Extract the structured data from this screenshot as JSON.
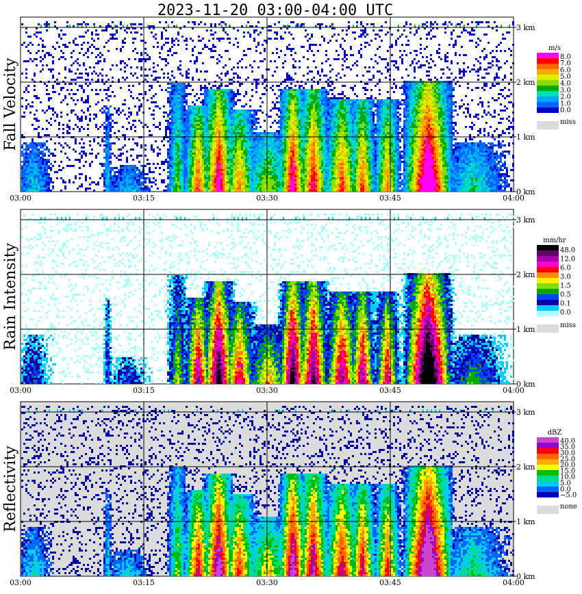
{
  "title": "2023-11-20   03:00-04:00 UTC",
  "time_ticks": [
    "03:00",
    "03:15",
    "03:30",
    "03:45",
    "04:00"
  ],
  "height_ticks": [
    "0 km",
    "1 km",
    "2 km",
    "3 km"
  ],
  "colors": {
    "missing": "#dcdcdc",
    "grid": "#000000",
    "background": "#ffffff"
  },
  "chart_data": [
    {
      "type": "heatmap",
      "id": "fall-velocity",
      "ylabel": "Fall Velocity",
      "x_range": [
        "03:00",
        "04:00"
      ],
      "y_range_km": [
        0,
        3.2
      ],
      "background": "#ffffff",
      "colorbar": {
        "unit": "m/s",
        "labels": [
          "8.0",
          "7.0",
          "6.0",
          "5.0",
          "4.0",
          "3.0",
          "2.0",
          "1.0",
          "0.0"
        ],
        "colors": [
          "#ff00ff",
          "#ff0000",
          "#ff6600",
          "#ffaa00",
          "#ddee00",
          "#88dd00",
          "#00aa00",
          "#00ddbb",
          "#00aaff",
          "#0066ff",
          "#0000cc"
        ],
        "missing_label": "miss"
      }
    },
    {
      "type": "heatmap",
      "id": "rain-intensity",
      "ylabel": "Rain Intensity",
      "x_range": [
        "03:00",
        "04:00"
      ],
      "y_range_km": [
        0,
        3.2
      ],
      "background": "#ffffff",
      "colorbar": {
        "unit": "mm/hr",
        "labels": [
          "48.0",
          "12.0",
          "6.0",
          "3.0",
          "1.5",
          "0.5",
          "0.1",
          "0.0"
        ],
        "colors": [
          "#000000",
          "#660066",
          "#aa00aa",
          "#ff00cc",
          "#ff0000",
          "#ff8800",
          "#ffee00",
          "#88dd00",
          "#00aa00",
          "#0044ff",
          "#0000aa",
          "#00ccff",
          "#aaffff"
        ],
        "missing_label": "miss"
      }
    },
    {
      "type": "heatmap",
      "id": "reflectivity",
      "ylabel": "Reflectivity",
      "x_range": [
        "03:00",
        "04:00"
      ],
      "y_range_km": [
        0,
        3.2
      ],
      "background": "#dcdcdc",
      "colorbar": {
        "unit": "dBZ",
        "labels": [
          "40.0",
          "35.0",
          "30.0",
          "25.0",
          "20.0",
          "15.0",
          "10.0",
          "5.0",
          "0.0",
          "−5.0"
        ],
        "colors": [
          "#cc44cc",
          "#9900cc",
          "#ff0000",
          "#ff6600",
          "#ffaa00",
          "#ffff00",
          "#00bb00",
          "#00dd88",
          "#00ccff",
          "#0066ff",
          "#0000aa"
        ],
        "missing_label": "none"
      }
    }
  ]
}
